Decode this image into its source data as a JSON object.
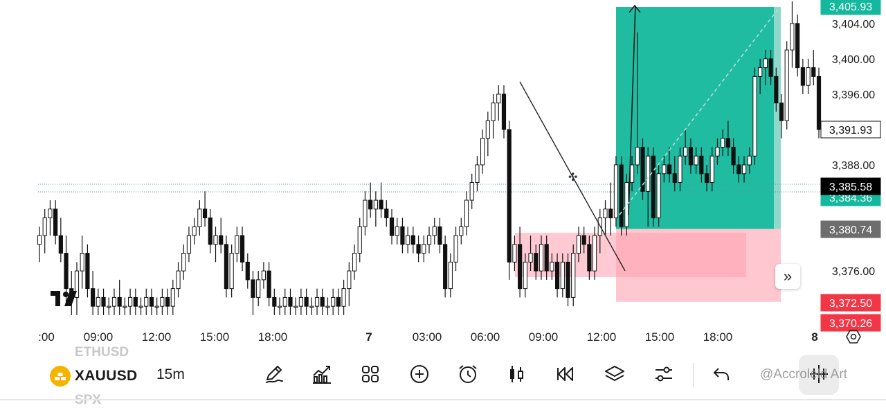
{
  "chart_data": {
    "type": "candlestick",
    "title": "",
    "ylim": [
      3371.0,
      3406.5
    ],
    "price_ticks": [
      "3,404.00",
      "3,400.00",
      "3,396.00",
      "3,388.00",
      "3,376.00"
    ],
    "time_labels": [
      ":00",
      "09:00",
      "12:00",
      "15:00",
      "18:00",
      "7",
      "03:00",
      "06:00",
      "09:00",
      "12:00",
      "15:00",
      "18:00",
      "8"
    ],
    "price_tags": {
      "take_profit": "3,405.93",
      "last_close": "3,391.93",
      "current": "3,385.58",
      "current_hidden": "3,384.36",
      "entry": "3,380.74",
      "stop_loss": "3,372.50",
      "stop_loss_hidden": "3,370.26"
    },
    "candles": [
      [
        3379,
        3381,
        3377,
        3380
      ],
      [
        3380,
        3383,
        3378,
        3382
      ],
      [
        3382,
        3384,
        3380,
        3383
      ],
      [
        3383,
        3384,
        3379,
        3380
      ],
      [
        3380,
        3382,
        3377,
        3378
      ],
      [
        3378,
        3380,
        3372,
        3374
      ],
      [
        3374,
        3376,
        3371,
        3373
      ],
      [
        3373,
        3377,
        3371,
        3376
      ],
      [
        3376,
        3380,
        3374,
        3378
      ],
      [
        3378,
        3379,
        3373,
        3374
      ],
      [
        3374,
        3376,
        3371,
        3372
      ],
      [
        3372,
        3374,
        3371,
        3373
      ],
      [
        3373,
        3374,
        3371,
        3372
      ],
      [
        3372,
        3373,
        3371,
        3372
      ],
      [
        3372,
        3374,
        3371,
        3373
      ],
      [
        3373,
        3375,
        3371,
        3372
      ],
      [
        3372,
        3373,
        3371,
        3372
      ],
      [
        3372,
        3374,
        3371,
        3373
      ],
      [
        3373,
        3374,
        3371,
        3372
      ],
      [
        3372,
        3373,
        3371,
        3372
      ],
      [
        3372,
        3374,
        3371,
        3373
      ],
      [
        3373,
        3374,
        3371,
        3372
      ],
      [
        3372,
        3373,
        3371,
        3372
      ],
      [
        3372,
        3374,
        3371,
        3373
      ],
      [
        3373,
        3374,
        3371,
        3372
      ],
      [
        3372,
        3375,
        3371,
        3374
      ],
      [
        3374,
        3377,
        3373,
        3376
      ],
      [
        3376,
        3379,
        3375,
        3378
      ],
      [
        3378,
        3381,
        3377,
        3380
      ],
      [
        3380,
        3382,
        3379,
        3381
      ],
      [
        3381,
        3384,
        3380,
        3383
      ],
      [
        3383,
        3385,
        3381,
        3382
      ],
      [
        3382,
        3383,
        3378,
        3379
      ],
      [
        3379,
        3381,
        3377,
        3380
      ],
      [
        3380,
        3382,
        3378,
        3379
      ],
      [
        3379,
        3380,
        3373,
        3374
      ],
      [
        3374,
        3379,
        3373,
        3378
      ],
      [
        3378,
        3381,
        3377,
        3380
      ],
      [
        3380,
        3381,
        3376,
        3377
      ],
      [
        3377,
        3378,
        3374,
        3375
      ],
      [
        3375,
        3376,
        3371,
        3373
      ],
      [
        3373,
        3376,
        3372,
        3375
      ],
      [
        3375,
        3377,
        3374,
        3376
      ],
      [
        3376,
        3377,
        3372,
        3373
      ],
      [
        3373,
        3374,
        3371,
        3372
      ],
      [
        3372,
        3373,
        3371,
        3372
      ],
      [
        3372,
        3374,
        3371,
        3373
      ],
      [
        3373,
        3374,
        3371,
        3372
      ],
      [
        3372,
        3373,
        3371,
        3372
      ],
      [
        3372,
        3374,
        3371,
        3373
      ],
      [
        3373,
        3374,
        3371,
        3372
      ],
      [
        3372,
        3373,
        3371,
        3372
      ],
      [
        3372,
        3374,
        3371,
        3373
      ],
      [
        3373,
        3374,
        3371,
        3372
      ],
      [
        3372,
        3373,
        3371,
        3372
      ],
      [
        3372,
        3374,
        3371,
        3373
      ],
      [
        3373,
        3374,
        3371,
        3372
      ],
      [
        3372,
        3375,
        3371,
        3374
      ],
      [
        3374,
        3377,
        3372,
        3376
      ],
      [
        3376,
        3379,
        3375,
        3378
      ],
      [
        3378,
        3382,
        3377,
        3381
      ],
      [
        3381,
        3385,
        3380,
        3384
      ],
      [
        3384,
        3386,
        3382,
        3383
      ],
      [
        3383,
        3385,
        3381,
        3384
      ],
      [
        3384,
        3386,
        3382,
        3383
      ],
      [
        3383,
        3384,
        3381,
        3382
      ],
      [
        3382,
        3383,
        3379,
        3380
      ],
      [
        3380,
        3382,
        3379,
        3381
      ],
      [
        3381,
        3382,
        3378,
        3379
      ],
      [
        3379,
        3381,
        3378,
        3380
      ],
      [
        3380,
        3381,
        3378,
        3379
      ],
      [
        3379,
        3380,
        3377,
        3378
      ],
      [
        3378,
        3380,
        3377,
        3379
      ],
      [
        3379,
        3381,
        3378,
        3380
      ],
      [
        3380,
        3382,
        3379,
        3381
      ],
      [
        3381,
        3382,
        3378,
        3379
      ],
      [
        3379,
        3380,
        3373,
        3374
      ],
      [
        3374,
        3378,
        3373,
        3377
      ],
      [
        3377,
        3381,
        3376,
        3380
      ],
      [
        3380,
        3382,
        3379,
        3381
      ],
      [
        3381,
        3385,
        3380,
        3384
      ],
      [
        3384,
        3387,
        3383,
        3386
      ],
      [
        3386,
        3389,
        3385,
        3388
      ],
      [
        3388,
        3392,
        3387,
        3391
      ],
      [
        3391,
        3394,
        3389,
        3393
      ],
      [
        3393,
        3396,
        3391,
        3395
      ],
      [
        3395,
        3397,
        3393,
        3396
      ],
      [
        3396,
        3397,
        3391,
        3392
      ],
      [
        3392,
        3393,
        3375,
        3377
      ],
      [
        3377,
        3380,
        3376,
        3379
      ],
      [
        3379,
        3381,
        3373,
        3374
      ],
      [
        3374,
        3378,
        3373,
        3377
      ],
      [
        3377,
        3380,
        3376,
        3378
      ],
      [
        3378,
        3379,
        3375,
        3376
      ],
      [
        3376,
        3380,
        3375,
        3379
      ],
      [
        3379,
        3380,
        3375,
        3376
      ],
      [
        3376,
        3378,
        3375,
        3377
      ],
      [
        3377,
        3378,
        3373,
        3374
      ],
      [
        3374,
        3378,
        3373,
        3377
      ],
      [
        3377,
        3378,
        3372,
        3373
      ],
      [
        3373,
        3379,
        3372,
        3378
      ],
      [
        3378,
        3381,
        3377,
        3380
      ],
      [
        3380,
        3381,
        3378,
        3379
      ],
      [
        3379,
        3380,
        3375,
        3376
      ],
      [
        3376,
        3381,
        3375,
        3380
      ],
      [
        3380,
        3383,
        3378,
        3382
      ],
      [
        3382,
        3384,
        3380,
        3383
      ],
      [
        3383,
        3386,
        3380,
        3382
      ],
      [
        3382,
        3389,
        3381,
        3388
      ],
      [
        3388,
        3389,
        3380,
        3381
      ],
      [
        3381,
        3387,
        3380,
        3386
      ],
      [
        3386,
        3389,
        3385,
        3388
      ],
      [
        3388,
        3403,
        3387,
        3390
      ],
      [
        3390,
        3391,
        3384,
        3385
      ],
      [
        3385,
        3390,
        3381,
        3389
      ],
      [
        3389,
        3390,
        3381,
        3382
      ],
      [
        3382,
        3388,
        3381,
        3387
      ],
      [
        3387,
        3389,
        3386,
        3388
      ],
      [
        3388,
        3390,
        3386,
        3387
      ],
      [
        3387,
        3389,
        3385,
        3386
      ],
      [
        3386,
        3390,
        3385,
        3389
      ],
      [
        3389,
        3392,
        3388,
        3390
      ],
      [
        3390,
        3391,
        3387,
        3388
      ],
      [
        3388,
        3390,
        3387,
        3389
      ],
      [
        3389,
        3390,
        3386,
        3387
      ],
      [
        3387,
        3388,
        3385,
        3386
      ],
      [
        3386,
        3390,
        3385,
        3389
      ],
      [
        3389,
        3391,
        3388,
        3390
      ],
      [
        3390,
        3392,
        3389,
        3391
      ],
      [
        3391,
        3393,
        3389,
        3390
      ],
      [
        3390,
        3391,
        3387,
        3388
      ],
      [
        3388,
        3389,
        3386,
        3387
      ],
      [
        3387,
        3389,
        3386,
        3388
      ],
      [
        3388,
        3390,
        3387,
        3389
      ],
      [
        3389,
        3399,
        3388,
        3398
      ],
      [
        3398,
        3400,
        3396,
        3399
      ],
      [
        3399,
        3401,
        3397,
        3400
      ],
      [
        3400,
        3401,
        3397,
        3398
      ],
      [
        3398,
        3399,
        3394,
        3395
      ],
      [
        3395,
        3396,
        3391,
        3393
      ],
      [
        3393,
        3402,
        3392,
        3401
      ],
      [
        3401,
        3407,
        3399,
        3404
      ],
      [
        3404,
        3405,
        3398,
        3399
      ],
      [
        3399,
        3400,
        3396,
        3397
      ],
      [
        3397,
        3400,
        3396,
        3399
      ],
      [
        3399,
        3401,
        3397,
        3398
      ],
      [
        3398,
        3399,
        3391,
        3392
      ]
    ]
  },
  "positions": {
    "long_position": {
      "entry": 3380.74,
      "target": 3405.93,
      "stop": 3372.5
    },
    "short_position": {
      "top": 3380.74,
      "bottom": 3375.8
    }
  },
  "overlay": {
    "cursor_symbol": "✣"
  },
  "toolbar": {
    "symbol": "XAUUSD",
    "symbol_above": "ETHUSD",
    "symbol_below": "SPX",
    "interval": "15m",
    "icons": [
      "pencil-icon",
      "indicators-icon",
      "layout-grid-icon",
      "add-circle-icon",
      "alarm-clock-icon",
      "candles-icon",
      "replay-icon",
      "layers-icon",
      "settings-sliders-icon",
      "undo-icon",
      "crosshair-icon"
    ],
    "watermark": "@Accroleld Art"
  },
  "colors": {
    "profit_zone": "#14b89c",
    "loss_zone": "#ffb3bd",
    "stop_tag": "#f23645",
    "profit_tag": "#14b89c",
    "current_tag": "#000000",
    "entry_tag": "#6d6d6d"
  }
}
